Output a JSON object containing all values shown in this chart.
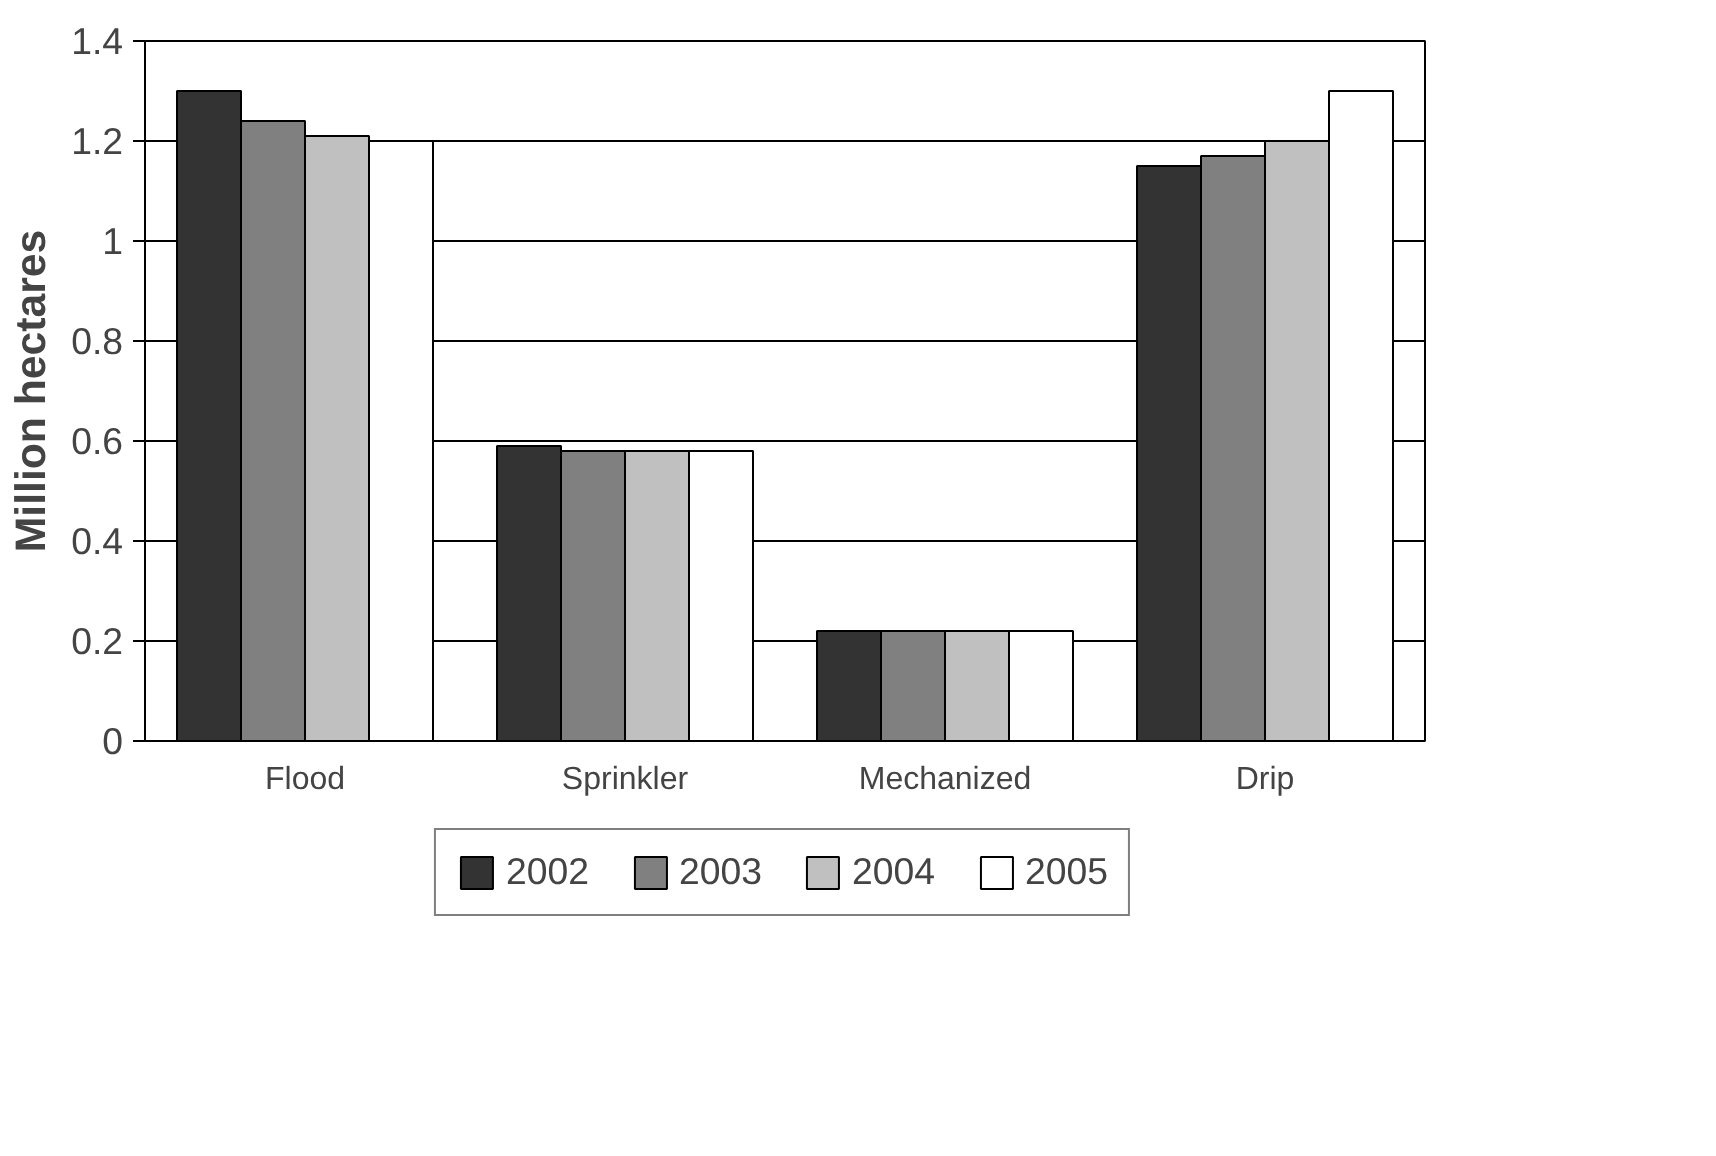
{
  "chart_data": {
    "type": "bar",
    "ylabel": "Million hectares",
    "categories": [
      "Flood",
      "Sprinkler",
      "Mechanized",
      "Drip"
    ],
    "series": [
      {
        "name": "2002",
        "color": "#333333",
        "values": [
          1.3,
          0.59,
          0.22,
          1.15
        ]
      },
      {
        "name": "2003",
        "color": "#808080",
        "values": [
          1.24,
          0.58,
          0.22,
          1.17
        ]
      },
      {
        "name": "2004",
        "color": "#c0c0c0",
        "values": [
          1.21,
          0.58,
          0.22,
          1.2
        ]
      },
      {
        "name": "2005",
        "color": "#ffffff",
        "values": [
          1.2,
          0.58,
          0.22,
          1.3
        ]
      }
    ],
    "ylim": [
      0,
      1.4
    ],
    "yticks": [
      0,
      0.2,
      0.4,
      0.6,
      0.8,
      1,
      1.2,
      1.4
    ],
    "grid": "y",
    "legend": "bottom"
  }
}
